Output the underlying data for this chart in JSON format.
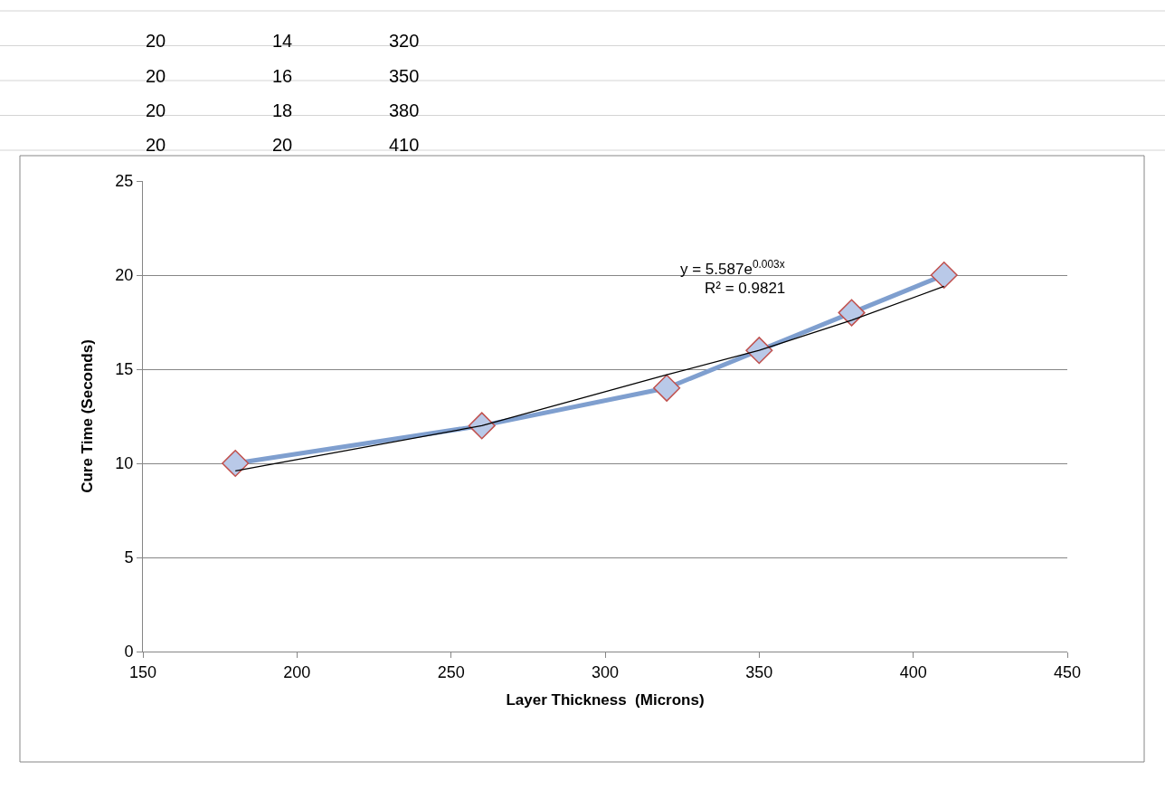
{
  "chart_data": {
    "type": "line",
    "xlabel": "Layer Thickness  (Microns)",
    "ylabel": "Cure Time (Seconds)",
    "x": [
      180,
      260,
      320,
      350,
      380,
      410
    ],
    "series": [
      {
        "color": "#7f9fcf",
        "values": [
          10,
          12,
          14,
          16,
          18,
          20
        ],
        "marker": "diamond"
      },
      {
        "type": "line",
        "color": "#000000",
        "x": [
          180,
          260,
          320,
          350,
          380,
          410
        ],
        "values": [
          9.6,
          12.0,
          14.7,
          16.0,
          17.6,
          19.4
        ],
        "marker": "none"
      }
    ],
    "xlim": [
      150,
      450
    ],
    "xticks": [
      150,
      200,
      250,
      300,
      350,
      400,
      450
    ],
    "ylim": [
      0,
      25
    ],
    "yticks": [
      0,
      5,
      10,
      15,
      20,
      25
    ],
    "grid": "y",
    "annotations": [
      "y = 5.587e$^{0.003x}$",
      "R² = 0.9821",
      "20",
      "14",
      "320",
      "20",
      "16",
      "350",
      "20",
      "18",
      "380",
      "20",
      "20",
      "410"
    ]
  }
}
